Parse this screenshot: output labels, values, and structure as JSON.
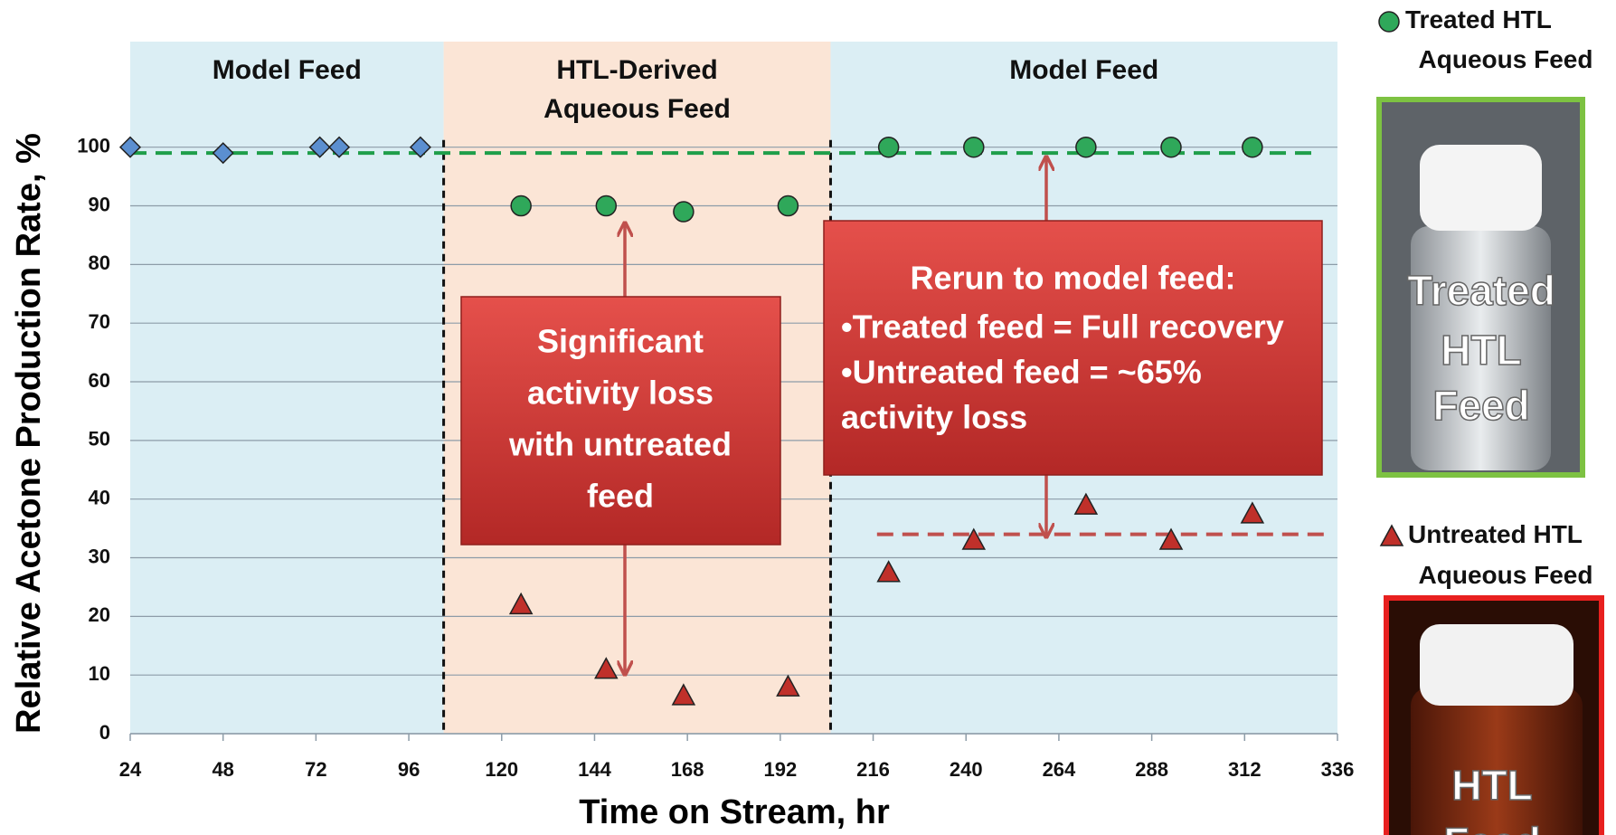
{
  "chart_data": {
    "type": "scatter",
    "xlabel": "Time on Stream, hr",
    "ylabel": "Relative Acetone Production Rate, %",
    "xlim": [
      24,
      336
    ],
    "xticks": [
      24,
      48,
      72,
      96,
      120,
      144,
      168,
      192,
      216,
      240,
      264,
      288,
      312,
      336
    ],
    "ylim": [
      0,
      118
    ],
    "yticks": [
      0,
      10,
      20,
      30,
      40,
      50,
      60,
      70,
      80,
      90,
      100
    ],
    "grid": true,
    "regions": [
      {
        "label_lines": [
          "Model Feed"
        ],
        "start": 24,
        "end": 105,
        "color": "#dbeef4"
      },
      {
        "label_lines": [
          "HTL-Derived",
          "Aqueous Feed"
        ],
        "start": 105,
        "end": 205,
        "color": "#fbe5d6"
      },
      {
        "label_lines": [
          "Model Feed"
        ],
        "start": 205,
        "end": 336,
        "color": "#dbeef4"
      }
    ],
    "dividers": [
      105,
      205
    ],
    "ref_lines": [
      {
        "value": 99,
        "x_from": 24,
        "x_to": 331,
        "color": "#1f9e4a"
      },
      {
        "value": 34,
        "x_from": 217,
        "x_to": 334,
        "color": "#c0504d"
      }
    ],
    "series": [
      {
        "marker": "diamond",
        "color": "#5b8fd0",
        "x": [
          24,
          48,
          73,
          78,
          99
        ],
        "values": [
          100,
          99,
          100,
          100,
          100
        ]
      },
      {
        "name": "Treated HTL Aqueous Feed",
        "marker": "circle",
        "color": "#2fa85a",
        "x": [
          125,
          147,
          167,
          194,
          220,
          242,
          271,
          293,
          314
        ],
        "values": [
          90,
          90,
          89,
          90,
          100,
          100,
          100,
          100,
          100
        ]
      },
      {
        "name": "Untreated HTL Aqueous Feed",
        "marker": "triangle",
        "color": "#c0302a",
        "x": [
          125,
          147,
          167,
          194,
          220,
          242,
          271,
          293,
          314
        ],
        "values": [
          22,
          11,
          6.5,
          8,
          27.5,
          33,
          39,
          33,
          37.5
        ]
      }
    ],
    "annotations": [
      {
        "lines": [
          "Significant",
          "activity loss",
          "with untreated",
          "feed"
        ]
      },
      {
        "lines": [
          "Rerun to model feed:",
          "•Treated feed = Full recovery",
          "•Untreated feed = ~65%",
          "activity loss"
        ]
      }
    ],
    "photos": [
      {
        "label_lines": [
          "Treated",
          "HTL",
          "Feed"
        ],
        "border": "#7dc242"
      },
      {
        "label_lines": [
          "HTL",
          "Feed"
        ],
        "border": "#e8201f"
      }
    ]
  }
}
